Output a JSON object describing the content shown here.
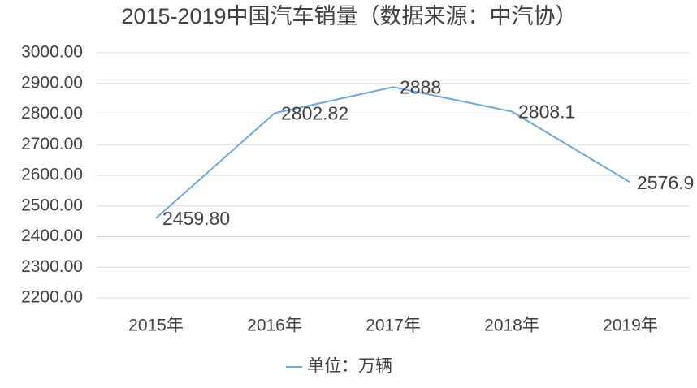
{
  "chart_data": {
    "type": "line",
    "title": "2015-2019中国汽车销量（数据来源：中汽协）",
    "categories": [
      "2015年",
      "2016年",
      "2017年",
      "2018年",
      "2019年"
    ],
    "series": [
      {
        "name": "单位：万辆",
        "color": "#6fa8d6",
        "values": [
          2459.8,
          2802.82,
          2888,
          2808.1,
          2576.9
        ],
        "value_labels": [
          "2459.80",
          "2802.82",
          "2888",
          "2808.1",
          "2576.9"
        ]
      }
    ],
    "ylim": [
      2200,
      3000
    ],
    "yticks": [
      {
        "value": 2200,
        "label": "2200.00"
      },
      {
        "value": 2300,
        "label": "2300.00"
      },
      {
        "value": 2400,
        "label": "2400.00"
      },
      {
        "value": 2500,
        "label": "2500.00"
      },
      {
        "value": 2600,
        "label": "2600.00"
      },
      {
        "value": 2700,
        "label": "2700.00"
      },
      {
        "value": 2800,
        "label": "2800.00"
      },
      {
        "value": 2900,
        "label": "2900.00"
      },
      {
        "value": 3000,
        "label": "3000.00"
      }
    ],
    "grid": true,
    "legend": "bottom"
  }
}
